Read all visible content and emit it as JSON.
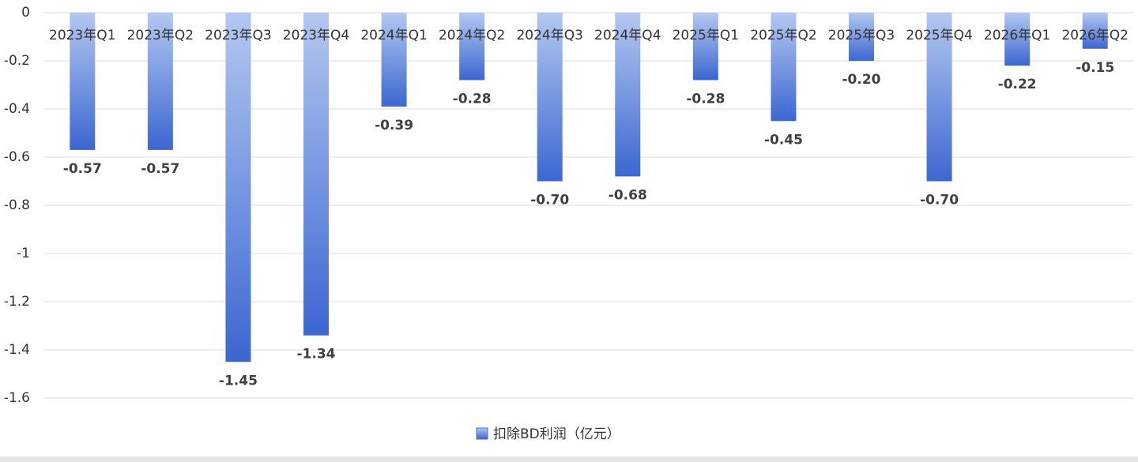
{
  "chart_data": {
    "type": "bar",
    "categories": [
      "2023年Q1",
      "2023年Q2",
      "2023年Q3",
      "2023年Q4",
      "2024年Q1",
      "2024年Q2",
      "2024年Q3",
      "2024年Q4",
      "2025年Q1",
      "2025年Q2",
      "2025年Q3",
      "2025年Q4",
      "2026年Q1",
      "2026年Q2"
    ],
    "series": [
      {
        "name": "扣除BD利润（亿元）",
        "color": "#4472c4",
        "values": [
          -0.57,
          -0.57,
          -1.45,
          -1.34,
          -0.39,
          -0.28,
          -0.7,
          -0.68,
          -0.28,
          -0.45,
          -0.2,
          -0.7,
          -0.22,
          -0.15
        ],
        "value_labels": [
          "-0.57",
          "-0.57",
          "-1.45",
          "-1.34",
          "-0.39",
          "-0.28",
          "-0.70",
          "-0.68",
          "-0.28",
          "-0.45",
          "-0.20",
          "-0.70",
          "-0.22",
          "-0.15"
        ]
      }
    ],
    "ylim": [
      -1.6,
      0
    ],
    "yticks": [
      0,
      -0.2,
      -0.4,
      -0.6,
      -0.8,
      -1,
      -1.2,
      -1.4,
      -1.6
    ],
    "grid": true,
    "legend": "bottom"
  }
}
